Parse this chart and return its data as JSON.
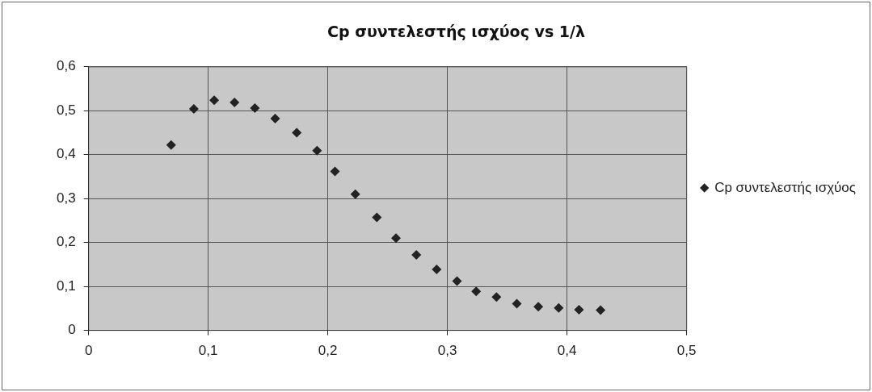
{
  "chart_data": {
    "type": "scatter",
    "title": "Cp συντελεστής ισχύος vs 1/λ",
    "x": [
      0.069,
      0.088,
      0.105,
      0.122,
      0.139,
      0.156,
      0.174,
      0.191,
      0.206,
      0.223,
      0.241,
      0.257,
      0.274,
      0.291,
      0.308,
      0.324,
      0.341,
      0.358,
      0.376,
      0.393,
      0.41,
      0.428
    ],
    "series": [
      {
        "name": "Cp συντελεστής ισχύος",
        "color": "#222222",
        "values": [
          0.422,
          0.504,
          0.524,
          0.519,
          0.506,
          0.482,
          0.45,
          0.409,
          0.362,
          0.31,
          0.257,
          0.21,
          0.172,
          0.139,
          0.112,
          0.089,
          0.076,
          0.061,
          0.054,
          0.051,
          0.047,
          0.046
        ]
      }
    ],
    "xlim": [
      0,
      0.5
    ],
    "xticks": [
      0,
      {
        "value": 0.1,
        "label": "0,1"
      },
      {
        "value": 0.2,
        "label": "0,2"
      },
      {
        "value": 0.3,
        "label": "0,3"
      },
      {
        "value": 0.4,
        "label": "0,4"
      },
      {
        "value": 0.5,
        "label": "0,5"
      }
    ],
    "ylim": [
      0,
      0.6
    ],
    "yticks": [
      0,
      {
        "value": 0.1,
        "label": "0,1"
      },
      {
        "value": 0.2,
        "label": "0,2"
      },
      {
        "value": 0.3,
        "label": "0,3"
      },
      {
        "value": 0.4,
        "label": "0,4"
      },
      {
        "value": 0.5,
        "label": "0,5"
      },
      {
        "value": 0.6,
        "label": "0,6"
      }
    ],
    "grid": true,
    "legend": "right",
    "marker": "diamond"
  }
}
